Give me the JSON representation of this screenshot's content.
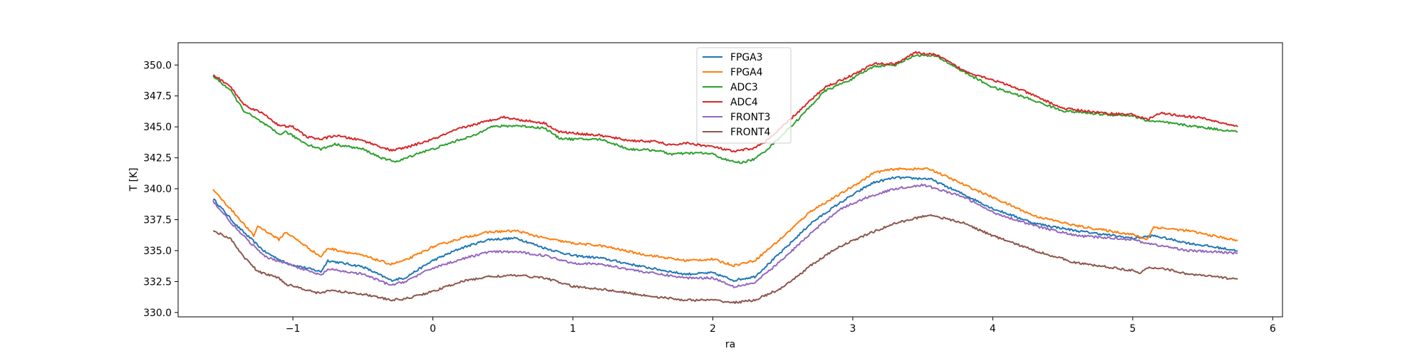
{
  "chart_data": {
    "type": "line",
    "title": "",
    "xlabel": "ra",
    "ylabel": "T [K]",
    "xlim": [
      -1.82,
      6.07
    ],
    "ylim": [
      329.65,
      351.8
    ],
    "xticks": [
      -1,
      0,
      1,
      2,
      3,
      4,
      5,
      6
    ],
    "xtick_labels": [
      "−1",
      "0",
      "1",
      "2",
      "3",
      "4",
      "5",
      "6"
    ],
    "yticks": [
      330.0,
      332.5,
      335.0,
      337.5,
      340.0,
      342.5,
      345.0,
      347.5,
      350.0
    ],
    "ytick_labels": [
      "330.0",
      "332.5",
      "335.0",
      "337.5",
      "340.0",
      "342.5",
      "345.0",
      "347.5",
      "350.0"
    ],
    "grid": false,
    "legend_position": "upper-center",
    "series": [
      {
        "name": "FPGA3",
        "color": "#1f77b4",
        "x": [
          -1.57,
          -1.4,
          -1.2,
          -1.05,
          -0.8,
          -0.75,
          -0.5,
          -0.3,
          -0.2,
          0.0,
          0.2,
          0.4,
          0.6,
          0.8,
          1.0,
          1.2,
          1.5,
          1.8,
          2.0,
          2.15,
          2.3,
          2.5,
          2.7,
          2.9,
          3.1,
          3.15,
          3.3,
          3.55,
          3.8,
          4.0,
          4.3,
          4.6,
          5.0,
          5.15,
          5.4,
          5.75
        ],
        "values": [
          339.2,
          337.0,
          334.9,
          334.0,
          333.3,
          334.2,
          333.7,
          332.6,
          332.8,
          334.2,
          335.2,
          335.9,
          336.0,
          335.2,
          334.6,
          334.4,
          333.7,
          333.1,
          333.2,
          332.6,
          332.9,
          335.0,
          337.2,
          338.8,
          340.2,
          340.5,
          340.9,
          340.8,
          339.5,
          338.4,
          337.2,
          336.6,
          336.0,
          336.2,
          335.6,
          335.0
        ]
      },
      {
        "name": "FPGA4",
        "color": "#ff7f0e",
        "x": [
          -1.57,
          -1.4,
          -1.28,
          -1.25,
          -1.1,
          -1.05,
          -0.8,
          -0.75,
          -0.5,
          -0.3,
          -0.2,
          0.0,
          0.2,
          0.4,
          0.6,
          0.8,
          1.0,
          1.2,
          1.5,
          1.8,
          2.0,
          2.15,
          2.3,
          2.5,
          2.7,
          2.9,
          3.1,
          3.15,
          3.3,
          3.55,
          3.8,
          4.0,
          4.3,
          4.6,
          5.0,
          5.1,
          5.15,
          5.4,
          5.75
        ],
        "values": [
          339.9,
          337.8,
          336.2,
          337.0,
          335.9,
          336.5,
          334.5,
          335.2,
          334.6,
          333.9,
          334.2,
          335.3,
          336.0,
          336.5,
          336.6,
          336.0,
          335.6,
          335.4,
          334.7,
          334.2,
          334.3,
          333.8,
          334.2,
          336.1,
          338.2,
          339.5,
          340.9,
          341.3,
          341.6,
          341.6,
          340.3,
          339.3,
          337.8,
          337.0,
          336.3,
          335.9,
          336.9,
          336.6,
          335.8
        ]
      },
      {
        "name": "ADC3",
        "color": "#2ca02c",
        "x": [
          -1.57,
          -1.45,
          -1.35,
          -1.2,
          -1.1,
          -1.05,
          -0.9,
          -0.8,
          -0.7,
          -0.5,
          -0.35,
          -0.25,
          -0.1,
          0.0,
          0.2,
          0.3,
          0.4,
          0.6,
          0.8,
          0.9,
          1.0,
          1.2,
          1.4,
          1.6,
          1.7,
          1.9,
          2.0,
          2.1,
          2.2,
          2.3,
          2.4,
          2.6,
          2.8,
          3.0,
          3.15,
          3.3,
          3.45,
          3.6,
          3.8,
          4.0,
          4.2,
          4.5,
          4.8,
          5.0,
          5.1,
          5.2,
          5.4,
          5.75
        ],
        "values": [
          349.1,
          348.0,
          346.3,
          345.2,
          344.4,
          344.6,
          343.6,
          343.2,
          343.6,
          343.2,
          342.4,
          342.2,
          342.9,
          343.2,
          344.0,
          344.3,
          345.0,
          345.1,
          344.9,
          344.1,
          344.0,
          344.0,
          343.2,
          343.1,
          342.8,
          342.9,
          342.8,
          342.3,
          342.1,
          342.4,
          343.3,
          345.5,
          347.9,
          348.9,
          349.9,
          350.0,
          350.8,
          350.7,
          349.4,
          348.2,
          347.5,
          346.3,
          346.0,
          345.9,
          345.5,
          345.4,
          345.1,
          344.6
        ]
      },
      {
        "name": "ADC4",
        "color": "#d62728",
        "x": [
          -1.57,
          -1.45,
          -1.35,
          -1.2,
          -1.1,
          -1.0,
          -0.9,
          -0.8,
          -0.7,
          -0.5,
          -0.3,
          -0.2,
          0.0,
          0.2,
          0.4,
          0.5,
          0.6,
          0.8,
          0.9,
          1.0,
          1.2,
          1.4,
          1.6,
          1.7,
          1.8,
          2.0,
          2.15,
          2.3,
          2.4,
          2.6,
          2.8,
          3.0,
          3.15,
          3.3,
          3.45,
          3.6,
          3.8,
          4.0,
          4.2,
          4.5,
          4.8,
          5.0,
          5.1,
          5.2,
          5.5,
          5.75
        ],
        "values": [
          349.2,
          348.3,
          346.8,
          346.0,
          345.1,
          345.0,
          344.2,
          344.0,
          344.3,
          343.9,
          343.1,
          343.3,
          344.0,
          344.9,
          345.5,
          345.8,
          345.6,
          345.3,
          344.6,
          344.5,
          344.3,
          343.9,
          343.8,
          343.5,
          343.7,
          343.4,
          343.0,
          343.3,
          344.0,
          346.1,
          348.2,
          349.2,
          350.1,
          350.1,
          351.0,
          350.8,
          349.5,
          348.8,
          348.0,
          346.5,
          346.1,
          346.0,
          345.6,
          346.1,
          345.7,
          345.0
        ]
      },
      {
        "name": "FRONT3",
        "color": "#9467bd",
        "x": [
          -1.57,
          -1.4,
          -1.2,
          -1.05,
          -0.8,
          -0.75,
          -0.5,
          -0.3,
          -0.2,
          0.0,
          0.2,
          0.4,
          0.6,
          0.8,
          1.0,
          1.2,
          1.5,
          1.8,
          2.0,
          2.15,
          2.3,
          2.5,
          2.7,
          2.9,
          3.1,
          3.3,
          3.5,
          3.6,
          3.8,
          4.0,
          4.3,
          4.6,
          5.0,
          5.1,
          5.4,
          5.75
        ],
        "values": [
          339.0,
          336.7,
          334.5,
          334.0,
          333.0,
          333.5,
          333.1,
          332.2,
          332.5,
          333.6,
          334.3,
          334.9,
          334.9,
          334.6,
          334.0,
          333.9,
          333.3,
          332.8,
          332.8,
          332.1,
          332.4,
          334.3,
          336.4,
          338.3,
          339.3,
          340.0,
          340.3,
          340.0,
          339.3,
          338.1,
          337.0,
          336.2,
          335.9,
          335.6,
          335.0,
          334.8
        ]
      },
      {
        "name": "FRONT4",
        "color": "#8c564b",
        "x": [
          -1.57,
          -1.45,
          -1.35,
          -1.25,
          -1.1,
          -1.05,
          -0.95,
          -0.8,
          -0.75,
          -0.5,
          -0.3,
          -0.2,
          0.0,
          0.2,
          0.4,
          0.6,
          0.8,
          1.0,
          1.2,
          1.5,
          1.8,
          2.0,
          2.15,
          2.3,
          2.5,
          2.7,
          2.9,
          3.1,
          3.3,
          3.55,
          3.8,
          4.0,
          4.3,
          4.6,
          5.0,
          5.05,
          5.1,
          5.2,
          5.4,
          5.75
        ],
        "values": [
          336.6,
          336.0,
          334.5,
          333.3,
          332.8,
          332.3,
          332.0,
          331.5,
          331.8,
          331.5,
          331.0,
          331.1,
          331.7,
          332.5,
          332.9,
          333.0,
          332.8,
          332.1,
          331.9,
          331.4,
          331.0,
          331.0,
          330.8,
          331.0,
          332.0,
          333.8,
          335.3,
          336.3,
          337.2,
          337.9,
          337.2,
          336.2,
          335.0,
          334.0,
          333.4,
          333.1,
          333.6,
          333.6,
          333.1,
          332.7
        ]
      }
    ]
  }
}
